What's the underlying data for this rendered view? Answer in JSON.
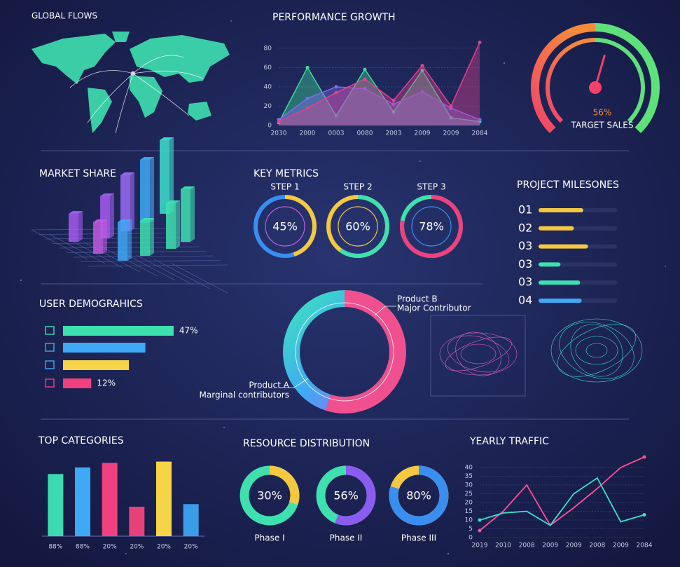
{
  "chart_data": [
    {
      "type": "map",
      "title": "GLOBAL FLOWS"
    },
    {
      "type": "area",
      "title": "PERFORMANCE GROWTH",
      "categories": [
        "2030",
        "2000",
        "0003",
        "0080",
        "2003",
        "2009",
        "2009",
        "2084"
      ],
      "series": [
        {
          "color": "#3ddc97",
          "values": [
            3,
            60,
            10,
            58,
            14,
            57,
            8,
            4
          ]
        },
        {
          "color": "#7b6cf0",
          "values": [
            6,
            28,
            40,
            38,
            22,
            35,
            18,
            6
          ]
        },
        {
          "color": "#e0408f",
          "values": [
            4,
            18,
            34,
            48,
            26,
            62,
            20,
            86
          ]
        }
      ],
      "ylim": [
        0,
        90
      ],
      "yticks": [
        0,
        20,
        40,
        60,
        80
      ],
      "grid": true
    },
    {
      "type": "gauge",
      "label": "TARGET SALES",
      "value": 56,
      "value_label": "56%",
      "colors": [
        "#f2426b",
        "#f58a3c",
        "#5ee07a"
      ]
    },
    {
      "type": "bar3d",
      "title": "MARKET SHARE",
      "values": [
        40,
        60,
        45,
        80,
        55,
        90,
        50,
        105,
        65,
        75
      ],
      "colors": [
        "#a55cf0",
        "#a55cf0",
        "#c05ce0",
        "#9a6cf5",
        "#3fa9f5",
        "#3fa9f5",
        "#3ee0b0",
        "#3ee0d0",
        "#3ee0b0",
        "#3ee0b0"
      ]
    },
    {
      "type": "rings",
      "title": "KEY METRICS",
      "categories": [
        "STEP 1",
        "STEP 2",
        "STEP 3"
      ],
      "values": [
        45,
        60,
        78
      ],
      "value_labels": [
        "45%",
        "60%",
        "78%"
      ],
      "colors": [
        "#f5c842",
        "#3ee0b0",
        "#f0407f"
      ],
      "track_colors": [
        "#3a8ef0",
        "#f5c842",
        "#3ee0b0"
      ],
      "inner_colors": [
        "#c05ce0",
        "#f5c842",
        "#3a8ef0"
      ]
    },
    {
      "type": "progress",
      "title": "PROJECT MILESONES",
      "categories": [
        "01",
        "02",
        "03",
        "03",
        "03",
        "04"
      ],
      "values": [
        57,
        45,
        63,
        28,
        53,
        55
      ],
      "xlim": [
        0,
        100
      ],
      "colors": [
        "#f5c842",
        "#f5c842",
        "#f5c842",
        "#3ee0b0",
        "#3ee0b0",
        "#3fa9f5"
      ]
    },
    {
      "type": "hbar",
      "title": "USER DEMOGRAHICS",
      "values": [
        47,
        35,
        28,
        12
      ],
      "value_labels": [
        "47%",
        null,
        null,
        "12%"
      ],
      "xlim": [
        0,
        50
      ],
      "colors": [
        "#3ee0b0",
        "#3fa9f5",
        "#f5d547",
        "#f0407f"
      ]
    },
    {
      "type": "donut",
      "categories": [
        "Product B",
        "Product A"
      ],
      "annotations": [
        "Major Contributor",
        "Marginal contributors"
      ],
      "values": [
        55,
        45
      ],
      "colors": [
        "#f0508f",
        "url(#ringA)"
      ]
    },
    {
      "type": "bar",
      "title": "TOP CATEGORIES",
      "categories": [
        "88%",
        "88%",
        "20%",
        "20%",
        "20%",
        "20%"
      ],
      "values": [
        95,
        105,
        112,
        45,
        114,
        49
      ],
      "ylim": [
        0,
        120
      ],
      "colors": [
        "#3dd9b0",
        "#3fa9f5",
        "#f0407f",
        "#e8407a",
        "#f5d547",
        "#3b9de8"
      ]
    },
    {
      "type": "rings",
      "title": "RESOURCE DISTRIBUTION",
      "categories": [
        "Phase I",
        "Phase II",
        "Phase III"
      ],
      "values": [
        30,
        56,
        80
      ],
      "value_labels": [
        "30%",
        "56%",
        "80%"
      ],
      "colors": [
        "#f5c842",
        "#8a5cf0",
        "#3a8ef0"
      ],
      "track_colors": [
        "#3ee0b0",
        "#3ee0b0",
        "#f5c842"
      ]
    },
    {
      "type": "line",
      "title": "YEARLY TRAFFIC",
      "categories": [
        "2019",
        "2010",
        "2008",
        "2009",
        "2009",
        "2008",
        "2009",
        "2084"
      ],
      "series": [
        {
          "color": "#ff4f9a",
          "values": [
            4,
            15,
            30,
            7,
            17,
            28,
            40,
            46
          ]
        },
        {
          "color": "#3ee0d0",
          "values": [
            10,
            14,
            15,
            7,
            25,
            34,
            9,
            13
          ]
        }
      ],
      "ylim": [
        0,
        48
      ],
      "yticks": [
        0,
        5,
        10,
        15,
        20,
        25,
        30,
        35,
        40
      ],
      "grid": true
    }
  ]
}
